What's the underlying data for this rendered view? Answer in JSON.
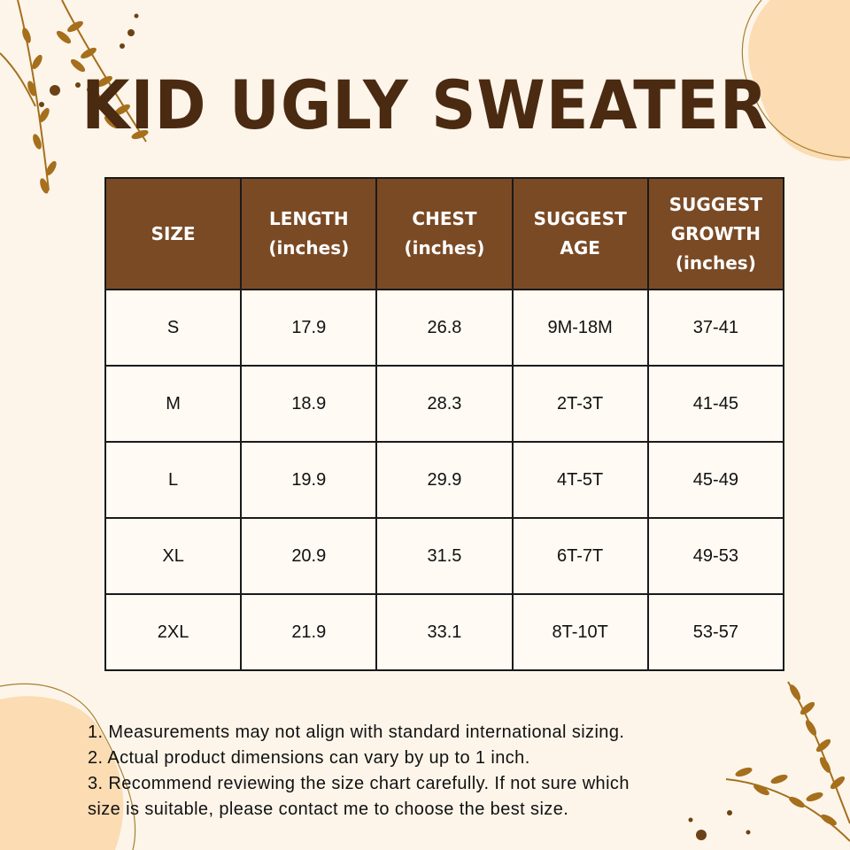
{
  "title": "KID UGLY SWEATER",
  "colors": {
    "background": "#fdf5ea",
    "header_fill": "#7a4a25",
    "title_text": "#4b2a12",
    "accent_blob": "#fbdcb3",
    "branch": "#a56f1c"
  },
  "table": {
    "headers": [
      {
        "label": "SIZE",
        "sub": ""
      },
      {
        "label": "LENGTH",
        "sub": "(inches)"
      },
      {
        "label": "CHEST",
        "sub": "(inches)"
      },
      {
        "label": "SUGGEST AGE",
        "sub": ""
      },
      {
        "label": "SUGGEST GROWTH",
        "sub": "(inches)"
      }
    ],
    "rows": [
      [
        "S",
        "17.9",
        "26.8",
        "9M-18M",
        "37-41"
      ],
      [
        "M",
        "18.9",
        "28.3",
        "2T-3T",
        "41-45"
      ],
      [
        "L",
        "19.9",
        "29.9",
        "4T-5T",
        "45-49"
      ],
      [
        "XL",
        "20.9",
        "31.5",
        "6T-7T",
        "49-53"
      ],
      [
        "2XL",
        "21.9",
        "33.1",
        "8T-10T",
        "53-57"
      ]
    ]
  },
  "notes": [
    "1. Measurements may not align with standard international sizing.",
    "2. Actual product dimensions can vary by up to 1 inch.",
    "3. Recommend reviewing the size chart carefully. If not sure which",
    "size is suitable, please contact me to choose the best size."
  ],
  "decorations": [
    "leafy-branch-top-left",
    "leafy-branch-bottom-right",
    "peach-blob-top-right",
    "peach-blob-bottom-left",
    "dots"
  ]
}
